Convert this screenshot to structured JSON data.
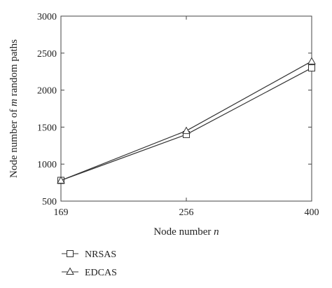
{
  "chart_data": {
    "type": "line",
    "xlabel": "Node number",
    "xlabel_var": "n",
    "ylabel": "Node number of",
    "ylabel_var": "m",
    "ylabel_suffix": "random paths",
    "categories": [
      "169",
      "256",
      "400"
    ],
    "ylim": [
      500,
      3000
    ],
    "yticks": [
      500,
      1000,
      1500,
      2000,
      2500,
      3000
    ],
    "grid": false,
    "legend_position": "bottom-left",
    "series": [
      {
        "name": "NRSAS",
        "marker": "square",
        "values": [
          780,
          1400,
          2300
        ]
      },
      {
        "name": "EDCAS",
        "marker": "triangle",
        "values": [
          780,
          1450,
          2390
        ]
      }
    ],
    "colors": {
      "line": "#333333",
      "axis": "#444444"
    }
  }
}
